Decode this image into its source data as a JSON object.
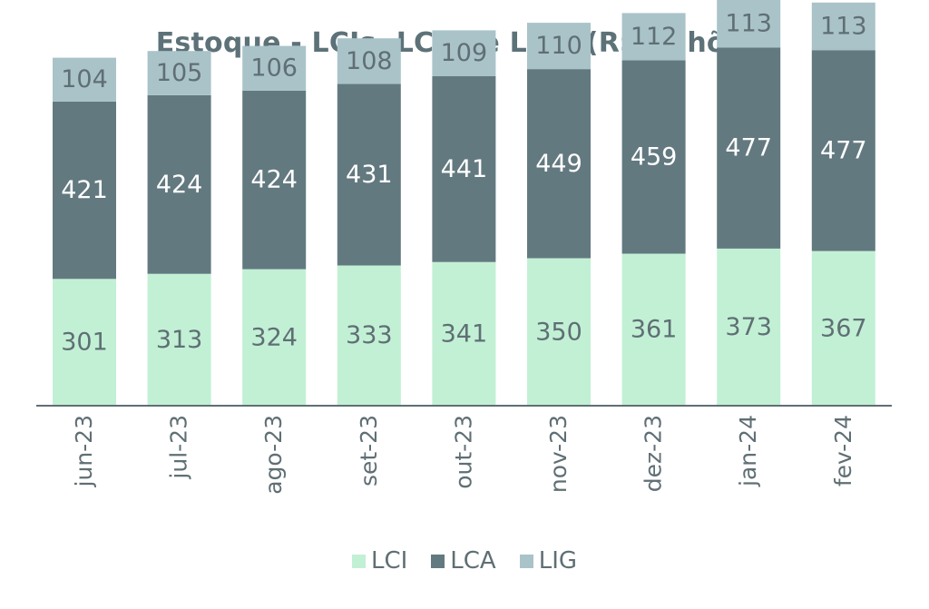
{
  "chart_data": {
    "type": "bar",
    "stacked": true,
    "title": "Estoque - LCIs, LCAs e LIGs (R$ bilhões)",
    "xlabel": "",
    "ylabel": "",
    "ylim": [
      0,
      963
    ],
    "grid": false,
    "legend_position": "bottom",
    "categories": [
      "jun-23",
      "jul-23",
      "ago-23",
      "set-23",
      "out-23",
      "nov-23",
      "dez-23",
      "jan-24",
      "fev-24"
    ],
    "series": [
      {
        "name": "LCI",
        "color": "#c2f0d5",
        "label_color": "#5f6f74",
        "values": [
          301,
          313,
          324,
          333,
          341,
          350,
          361,
          373,
          367
        ]
      },
      {
        "name": "LCA",
        "color": "#637980",
        "label_color": "#ffffff",
        "values": [
          421,
          424,
          424,
          431,
          441,
          449,
          459,
          477,
          477
        ]
      },
      {
        "name": "LIG",
        "color": "#a9c3c9",
        "label_color": "#5f6f74",
        "values": [
          104,
          105,
          106,
          108,
          109,
          110,
          112,
          113,
          113
        ]
      }
    ]
  },
  "colors": {
    "title": "#5d7278",
    "axis": "#5f6f74"
  }
}
